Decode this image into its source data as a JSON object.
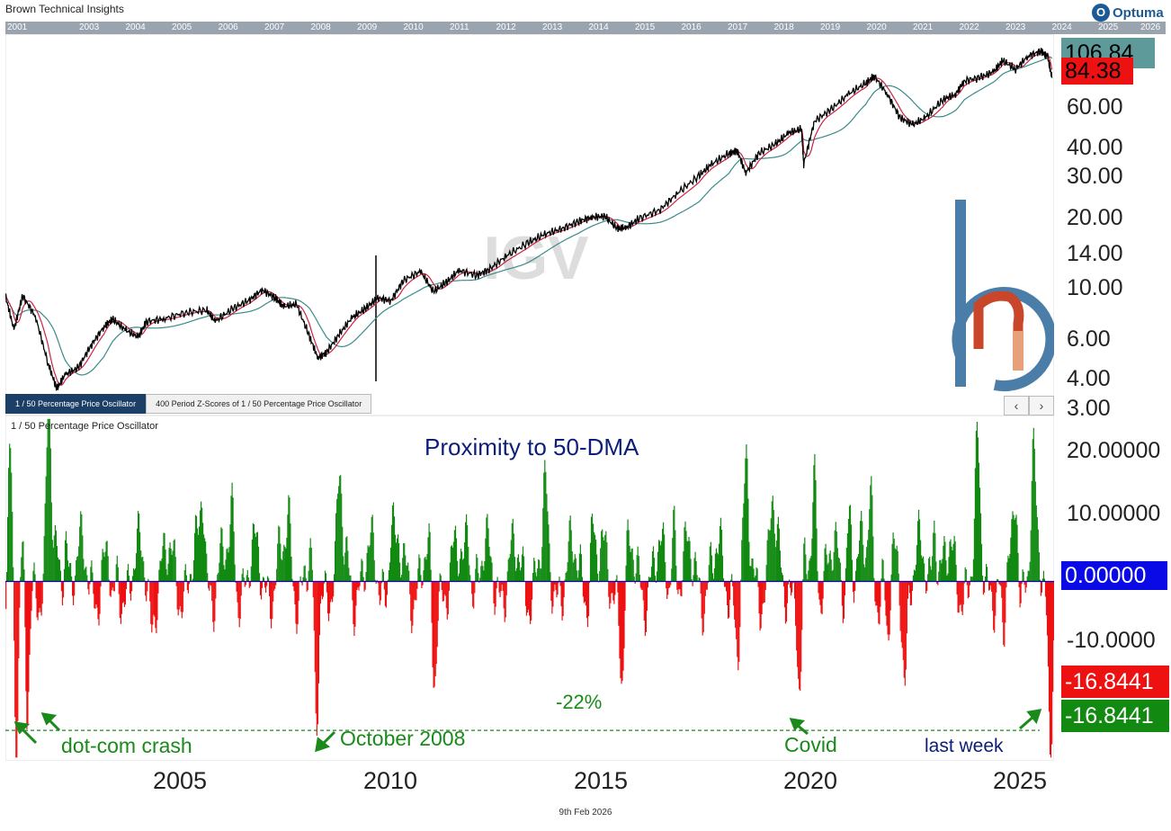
{
  "header": {
    "brand": "Brown Technical Insights",
    "logo_text": "Optuma",
    "nav_years": [
      "2001",
      "2003",
      "2004",
      "2005",
      "2006",
      "2007",
      "2008",
      "2009",
      "2010",
      "2011",
      "2012",
      "2013",
      "2014",
      "2015",
      "2016",
      "2017",
      "2018",
      "2019",
      "2020",
      "2021",
      "2022",
      "2023",
      "2024",
      "2025",
      "2026"
    ]
  },
  "tabs": [
    "1 / 50 Percentage Price Oscillator",
    "400 Period Z-Scores of 1 / 50 Percentage Price Oscillator"
  ],
  "nav_buttons": {
    "prev": "‹",
    "next": "›"
  },
  "watermark": "IGV",
  "osc_title": "1 / 50 Percentage Price Oscillator",
  "osc_heading": "Proximity to 50-DMA",
  "annotations": {
    "dotcom": "dot-com crash",
    "oct2008": "October 2008",
    "covid": "Covid",
    "last_week": "last week",
    "threshold": "-22%"
  },
  "footer": "9th Feb 2026",
  "colors": {
    "price": "#000000",
    "ma_short": "#cc2244",
    "ma_long": "#3a8a8a",
    "osc_positive": "#128a12",
    "osc_negative": "#ee1111",
    "zero_line": "#0000cc",
    "annotation": "#1a8a1a",
    "badge_green_teal": "#5e9a9a",
    "badge_red": "#ee1111",
    "badge_blue": "#0a0ae6",
    "badge_green": "#128a12"
  },
  "chart_data": [
    {
      "type": "line",
      "title": "",
      "y_scale": "log",
      "x_range": [
        2001.6,
        2026.1
      ],
      "ylim": [
        3.0,
        130.0
      ],
      "y_ticks": [
        "106.84",
        "84.38",
        "60.00",
        "40.00",
        "30.00",
        "20.00",
        "14.00",
        "10.00",
        "6.00",
        "4.00",
        "3.00"
      ],
      "last_values": {
        "moving_average": "106.84",
        "price": "84.38"
      },
      "series": [
        {
          "points": [
            [
              2001.6,
              9.8
            ],
            [
              2001.8,
              7.0
            ],
            [
              2002.0,
              9.8
            ],
            [
              2002.3,
              8.0
            ],
            [
              2002.6,
              5.0
            ],
            [
              2002.8,
              3.9
            ],
            [
              2003.0,
              4.5
            ],
            [
              2003.3,
              4.8
            ],
            [
              2003.6,
              6.0
            ],
            [
              2003.9,
              7.2
            ],
            [
              2004.1,
              7.8
            ],
            [
              2004.4,
              7.0
            ],
            [
              2004.7,
              6.5
            ],
            [
              2004.9,
              7.6
            ],
            [
              2005.3,
              7.8
            ],
            [
              2005.8,
              8.3
            ],
            [
              2006.3,
              8.5
            ],
            [
              2006.5,
              7.6
            ],
            [
              2006.9,
              8.6
            ],
            [
              2007.3,
              9.4
            ],
            [
              2007.6,
              10.4
            ],
            [
              2007.9,
              9.6
            ],
            [
              2008.1,
              8.8
            ],
            [
              2008.4,
              9.0
            ],
            [
              2008.7,
              6.6
            ],
            [
              2008.9,
              5.3
            ],
            [
              2009.1,
              5.6
            ],
            [
              2009.4,
              6.7
            ],
            [
              2009.7,
              7.9
            ],
            [
              2010.0,
              8.6
            ],
            [
              2010.3,
              9.6
            ],
            [
              2010.6,
              9.3
            ],
            [
              2010.9,
              11.4
            ],
            [
              2011.3,
              12.5
            ],
            [
              2011.6,
              10.2
            ],
            [
              2011.9,
              11.2
            ],
            [
              2012.2,
              12.6
            ],
            [
              2012.6,
              12.0
            ],
            [
              2012.9,
              12.7
            ],
            [
              2013.3,
              14.5
            ],
            [
              2013.8,
              16.5
            ],
            [
              2014.2,
              18.0
            ],
            [
              2014.6,
              19.0
            ],
            [
              2015.0,
              20.5
            ],
            [
              2015.3,
              21.3
            ],
            [
              2015.6,
              21.5
            ],
            [
              2015.9,
              19.0
            ],
            [
              2016.1,
              19.2
            ],
            [
              2016.4,
              21.0
            ],
            [
              2016.9,
              23.0
            ],
            [
              2017.3,
              27.0
            ],
            [
              2017.8,
              32.0
            ],
            [
              2018.1,
              36.0
            ],
            [
              2018.5,
              40.0
            ],
            [
              2018.7,
              41.0
            ],
            [
              2018.9,
              33.0
            ],
            [
              2019.2,
              40.0
            ],
            [
              2019.6,
              44.0
            ],
            [
              2019.9,
              49.0
            ],
            [
              2020.2,
              51.0
            ],
            [
              2020.25,
              36.0
            ],
            [
              2020.5,
              55.0
            ],
            [
              2020.9,
              62.0
            ],
            [
              2021.3,
              72.0
            ],
            [
              2021.7,
              80.0
            ],
            [
              2021.9,
              86.0
            ],
            [
              2022.2,
              72.0
            ],
            [
              2022.5,
              57.0
            ],
            [
              2022.8,
              53.0
            ],
            [
              2023.1,
              57.0
            ],
            [
              2023.5,
              68.0
            ],
            [
              2023.8,
              72.0
            ],
            [
              2024.0,
              82.0
            ],
            [
              2024.4,
              85.0
            ],
            [
              2024.7,
              90.0
            ],
            [
              2024.9,
              100.0
            ],
            [
              2025.2,
              92.0
            ],
            [
              2025.5,
              105.0
            ],
            [
              2025.8,
              110.0
            ],
            [
              2025.95,
              104.0
            ],
            [
              2026.05,
              84.38
            ]
          ]
        }
      ]
    },
    {
      "type": "bar",
      "title": "Proximity to 50-DMA",
      "x_range": [
        2001.6,
        2026.1
      ],
      "ylim": [
        -26.5,
        24.5
      ],
      "y_ticks": [
        "20.00000",
        "10.00000",
        "0.00000",
        "-10.0000"
      ],
      "last_values": [
        "-16.8441",
        "-16.8441"
      ],
      "threshold": -22,
      "x_ticks": [
        "2005",
        "2010",
        "2015",
        "2020",
        "2025"
      ],
      "x_tick_values": [
        2005,
        2010,
        2015,
        2020,
        2025
      ]
    }
  ]
}
